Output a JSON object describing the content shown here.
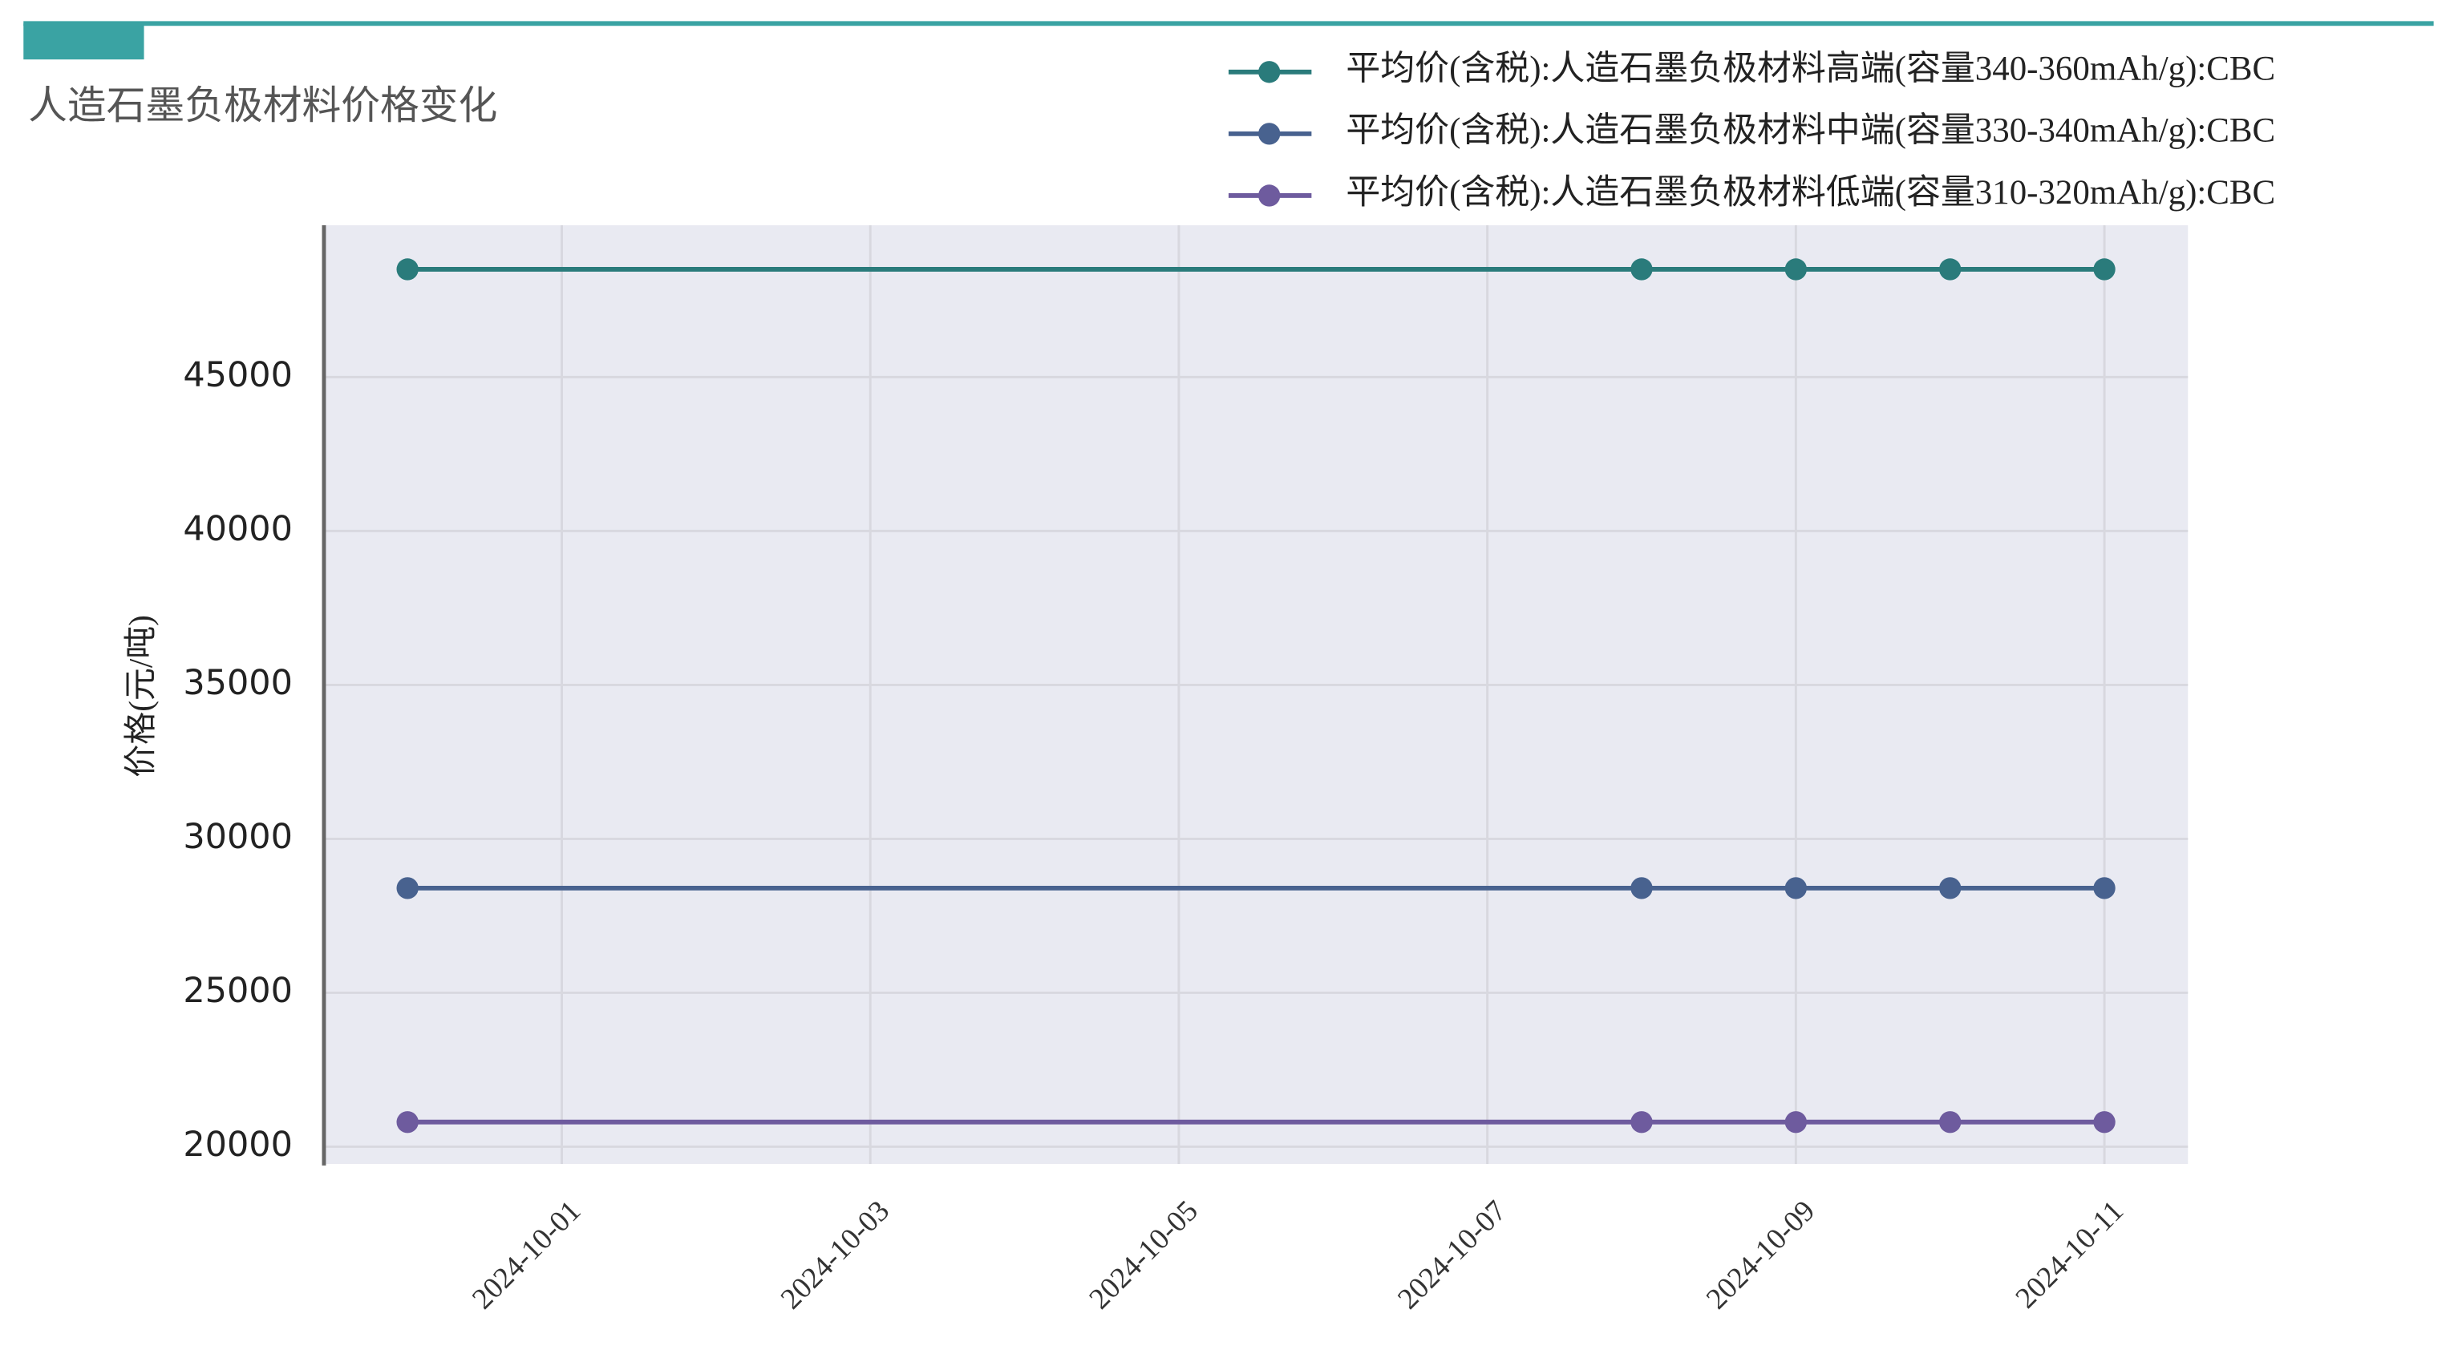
{
  "chart_data": {
    "type": "line",
    "title": "人造石墨负极材料价格变化",
    "y_label": "价格(元/吨)",
    "x": [
      "2024-09-30",
      "2024-10-08",
      "2024-10-09",
      "2024-10-10",
      "2024-10-11"
    ],
    "series": [
      {
        "name": "平均价(含税):人造石墨负极材料高端(容量340-360mAh/g):CBC",
        "color": "#2a7b7b",
        "values": [
          48500,
          48500,
          48500,
          48500,
          48500
        ]
      },
      {
        "name": "平均价(含税):人造石墨负极材料中端(容量330-340mAh/g):CBC",
        "color": "#48628f",
        "values": [
          28400,
          28400,
          28400,
          28400,
          28400
        ]
      },
      {
        "name": "平均价(含税):人造石墨负极材料低端(容量310-320mAh/g):CBC",
        "color": "#6e5b9e",
        "values": [
          20800,
          20800,
          20800,
          20800,
          20800
        ]
      }
    ],
    "xlim": [
      "2024-09-29T11:00",
      "2024-10-11T13:00"
    ],
    "xticks": [
      "2024-10-01",
      "2024-10-03",
      "2024-10-05",
      "2024-10-07",
      "2024-10-09",
      "2024-10-11"
    ],
    "ylim": [
      19440,
      49930
    ],
    "yticks": [
      20000,
      25000,
      30000,
      35000,
      40000,
      45000
    ],
    "grid": true,
    "legend": "top right"
  }
}
